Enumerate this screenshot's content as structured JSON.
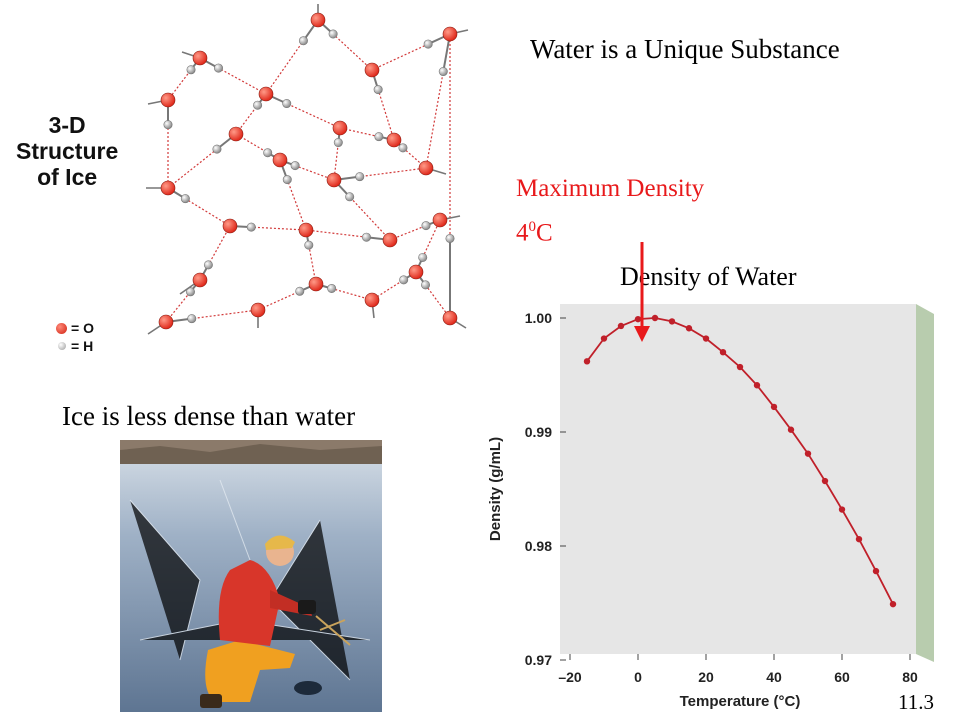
{
  "slide": {
    "title": "Water is a Unique Substance",
    "max_density_line1": "Maximum Density",
    "max_density_value": "4",
    "max_density_sup": "0",
    "max_density_unit": "C",
    "ice_caption": "Ice is less dense than water",
    "slide_number": "11.3"
  },
  "ice_figure": {
    "label_line1": "3-D",
    "label_line2": "Structure",
    "label_line3": "of Ice",
    "legend_o": "= O",
    "legend_h": "= H",
    "oxygen_color": "#e02a1c",
    "hydrogen_color": "#c8c8c8"
  },
  "photo": {
    "icon": "ice-fishing-photo"
  },
  "chart_data": {
    "type": "line",
    "title": "Density of Water",
    "xlabel": "Temperature (°C)",
    "ylabel": "Density (g/mL)",
    "xlim": [
      -20,
      80
    ],
    "ylim": [
      0.97,
      1.0
    ],
    "x_ticks": [
      "–20",
      "0",
      "20",
      "40",
      "60",
      "80"
    ],
    "y_ticks": [
      "0.97",
      "0.98",
      "0.99",
      "1.00"
    ],
    "series": [
      {
        "x": [
          -15,
          -10,
          -5,
          0,
          5,
          10,
          15,
          20,
          25,
          30,
          35,
          40,
          45,
          50,
          55,
          60,
          65,
          70,
          75
        ],
        "y": [
          0.9962,
          0.9982,
          0.9993,
          0.9999,
          1.0,
          0.9997,
          0.9991,
          0.9982,
          0.997,
          0.9957,
          0.9941,
          0.9922,
          0.9902,
          0.9881,
          0.9857,
          0.9832,
          0.9806,
          0.9778,
          0.9749
        ]
      }
    ],
    "line_color": "#c0202a",
    "panel_color": "#e6e6e6",
    "edge_color": "#b8ccae",
    "annotation_arrow_color": "#e8191b"
  }
}
